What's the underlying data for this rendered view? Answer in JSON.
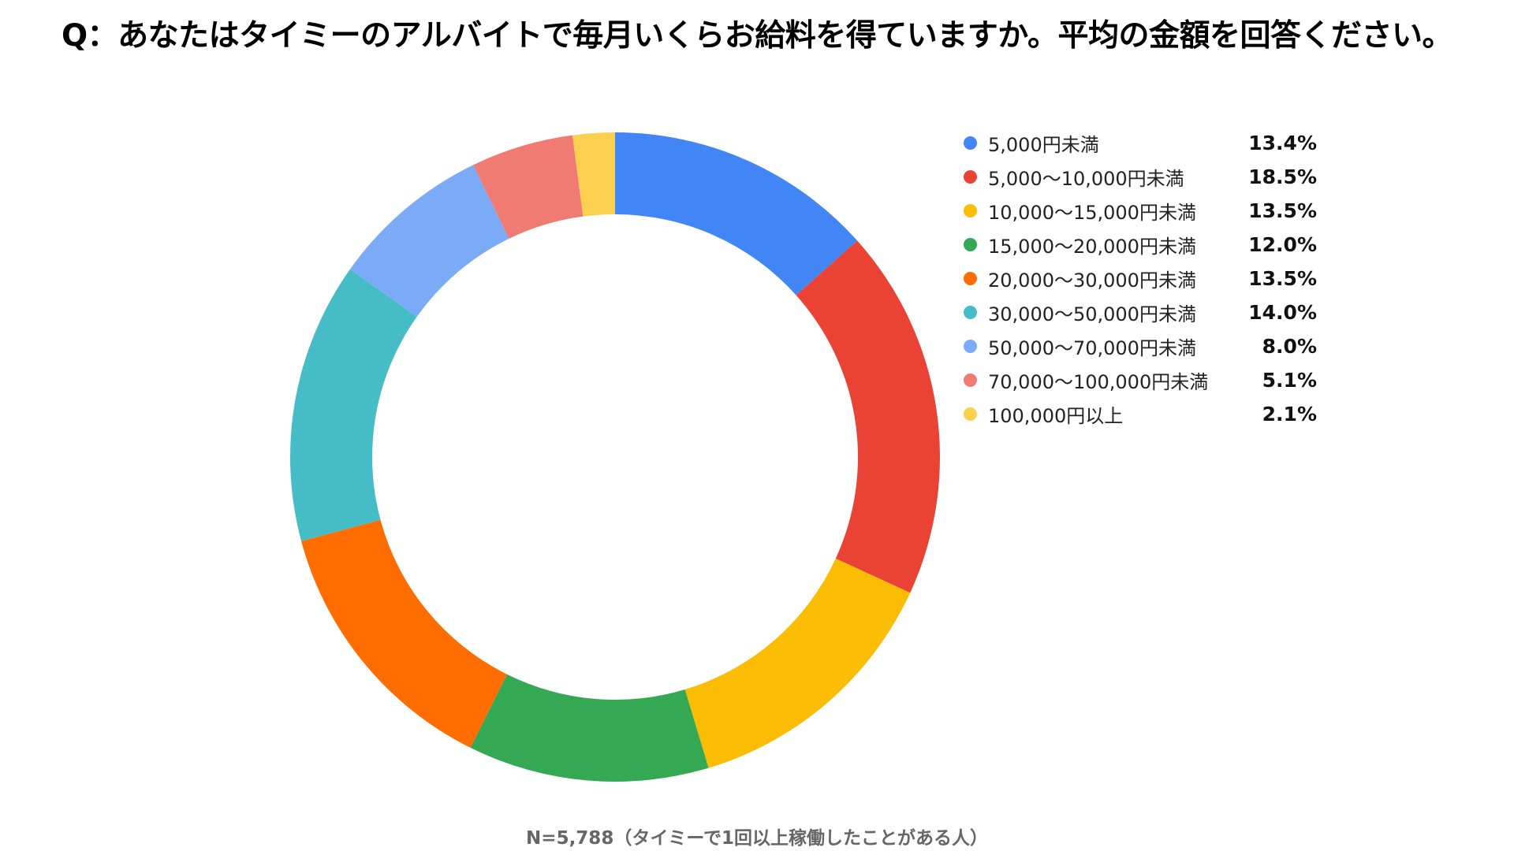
{
  "title": "Q：あなたはタイミーのアルバイトで毎月いくらお給料を得ていますか。平均の金額を回答ください。",
  "footnote": "N=5,788（タイミーで1回以上稼働したことがある人）",
  "chart_data": {
    "type": "pie",
    "donut": true,
    "title": "Q：あなたはタイミーのアルバイトで毎月いくらお給料を得ていますか。平均の金額を回答ください。",
    "legend_position": "right",
    "slices": [
      {
        "label": "5,000円未満",
        "value": 13.4,
        "display": "13.4%",
        "color": "#4285F4"
      },
      {
        "label": "5,000〜10,000円未満",
        "value": 18.5,
        "display": "18.5%",
        "color": "#EA4335"
      },
      {
        "label": "10,000〜15,000円未満",
        "value": 13.5,
        "display": "13.5%",
        "color": "#FBBC04"
      },
      {
        "label": "15,000〜20,000円未満",
        "value": 12.0,
        "display": "12.0%",
        "color": "#34A853"
      },
      {
        "label": "20,000〜30,000円未満",
        "value": 13.5,
        "display": "13.5%",
        "color": "#FF6D01"
      },
      {
        "label": "30,000〜50,000円未満",
        "value": 14.0,
        "display": "14.0%",
        "color": "#46BDC6"
      },
      {
        "label": "50,000〜70,000円未満",
        "value": 8.0,
        "display": "8.0%",
        "color": "#7BAAF7"
      },
      {
        "label": "70,000〜100,000円未満",
        "value": 5.1,
        "display": "5.1%",
        "color": "#F07B72"
      },
      {
        "label": "100,000円以上",
        "value": 2.1,
        "display": "2.1%",
        "color": "#FCD04F"
      }
    ]
  }
}
